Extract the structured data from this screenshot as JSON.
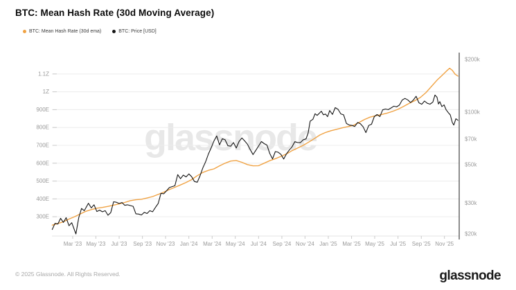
{
  "header": {
    "title": "BTC: Mean Hash Rate (30d Moving Average)",
    "legend": [
      {
        "label": "BTC: Mean Hash Rate (30d ema)",
        "color": "#f0a243"
      },
      {
        "label": "BTC: Price [USD]",
        "color": "#141414"
      }
    ]
  },
  "watermark": "glassnode",
  "footer": {
    "copyright": "© 2025 Glassnode. All Rights Reserved.",
    "logo": "glassnode"
  },
  "colors": {
    "hash_rate_line": "#f0a243",
    "price_line": "#141414",
    "gridline": "#ececec",
    "axis_line": "#1a1a1a",
    "tick_text": "#999999"
  },
  "chart_data": {
    "type": "line",
    "title": "BTC: Mean Hash Rate (30d Moving Average)",
    "x_unit": "decimal_year",
    "xlim": [
      2023.018,
      2025.934
    ],
    "grid": "horizontal",
    "legend_position": "top-left",
    "x_ticks": [
      {
        "t": 2023.167,
        "label": "Mar '23"
      },
      {
        "t": 2023.333,
        "label": "May '23"
      },
      {
        "t": 2023.5,
        "label": "Jul '23"
      },
      {
        "t": 2023.667,
        "label": "Sep '23"
      },
      {
        "t": 2023.833,
        "label": "Nov '23"
      },
      {
        "t": 2024.0,
        "label": "Jan '24"
      },
      {
        "t": 2024.167,
        "label": "Mar '24"
      },
      {
        "t": 2024.333,
        "label": "May '24"
      },
      {
        "t": 2024.5,
        "label": "Jul '24"
      },
      {
        "t": 2024.667,
        "label": "Sep '24"
      },
      {
        "t": 2024.833,
        "label": "Nov '24"
      },
      {
        "t": 2025.0,
        "label": "Jan '25"
      },
      {
        "t": 2025.167,
        "label": "Mar '25"
      },
      {
        "t": 2025.333,
        "label": "May '25"
      },
      {
        "t": 2025.5,
        "label": "Jul '25"
      },
      {
        "t": 2025.667,
        "label": "Sep '25"
      },
      {
        "t": 2025.833,
        "label": "Nov '25"
      }
    ],
    "left_axis": {
      "scale": "linear",
      "unit": "hash rate (H/s)",
      "ylim": [
        192,
        1204
      ],
      "ticks": [
        {
          "value": 1100,
          "label": "1.1Z"
        },
        {
          "value": 1000,
          "label": "1Z"
        },
        {
          "value": 900,
          "label": "900E"
        },
        {
          "value": 800,
          "label": "800E"
        },
        {
          "value": 700,
          "label": "700E"
        },
        {
          "value": 600,
          "label": "600E"
        },
        {
          "value": 500,
          "label": "500E"
        },
        {
          "value": 400,
          "label": "400E"
        },
        {
          "value": 300,
          "label": "300E"
        }
      ]
    },
    "right_axis": {
      "scale": "log",
      "unit": "USD (thousands)",
      "ylim": [
        19.46,
        211.7
      ],
      "ticks": [
        {
          "value": 200,
          "label": "$200k"
        },
        {
          "value": 100,
          "label": "$100k"
        },
        {
          "value": 70,
          "label": "$70k"
        },
        {
          "value": 50,
          "label": "$50k"
        },
        {
          "value": 30,
          "label": "$30k"
        },
        {
          "value": 20,
          "label": "$20k"
        }
      ]
    },
    "series": [
      {
        "name": "BTC: Mean Hash Rate (30d ema)",
        "axis": "left",
        "color": "#f0a243",
        "width": 1.4,
        "points": [
          [
            2023.02,
            253
          ],
          [
            2023.06,
            262
          ],
          [
            2023.1,
            272
          ],
          [
            2023.14,
            287
          ],
          [
            2023.18,
            300
          ],
          [
            2023.22,
            315
          ],
          [
            2023.26,
            330
          ],
          [
            2023.3,
            340
          ],
          [
            2023.34,
            348
          ],
          [
            2023.38,
            352
          ],
          [
            2023.42,
            358
          ],
          [
            2023.46,
            365
          ],
          [
            2023.5,
            372
          ],
          [
            2023.54,
            380
          ],
          [
            2023.58,
            390
          ],
          [
            2023.62,
            395
          ],
          [
            2023.66,
            398
          ],
          [
            2023.7,
            405
          ],
          [
            2023.74,
            413
          ],
          [
            2023.78,
            425
          ],
          [
            2023.82,
            438
          ],
          [
            2023.86,
            452
          ],
          [
            2023.9,
            465
          ],
          [
            2023.94,
            478
          ],
          [
            2023.98,
            492
          ],
          [
            2024.02,
            508
          ],
          [
            2024.06,
            530
          ],
          [
            2024.1,
            548
          ],
          [
            2024.14,
            560
          ],
          [
            2024.18,
            568
          ],
          [
            2024.22,
            585
          ],
          [
            2024.26,
            600
          ],
          [
            2024.3,
            612
          ],
          [
            2024.34,
            615
          ],
          [
            2024.38,
            605
          ],
          [
            2024.42,
            592
          ],
          [
            2024.46,
            585
          ],
          [
            2024.5,
            586
          ],
          [
            2024.54,
            600
          ],
          [
            2024.58,
            614
          ],
          [
            2024.62,
            625
          ],
          [
            2024.66,
            638
          ],
          [
            2024.7,
            652
          ],
          [
            2024.74,
            670
          ],
          [
            2024.78,
            685
          ],
          [
            2024.82,
            700
          ],
          [
            2024.86,
            718
          ],
          [
            2024.9,
            738
          ],
          [
            2024.94,
            758
          ],
          [
            2024.98,
            772
          ],
          [
            2025.02,
            782
          ],
          [
            2025.06,
            790
          ],
          [
            2025.1,
            798
          ],
          [
            2025.14,
            805
          ],
          [
            2025.18,
            812
          ],
          [
            2025.22,
            828
          ],
          [
            2025.26,
            845
          ],
          [
            2025.3,
            858
          ],
          [
            2025.34,
            866
          ],
          [
            2025.38,
            872
          ],
          [
            2025.42,
            880
          ],
          [
            2025.46,
            890
          ],
          [
            2025.5,
            902
          ],
          [
            2025.54,
            918
          ],
          [
            2025.58,
            935
          ],
          [
            2025.62,
            950
          ],
          [
            2025.66,
            968
          ],
          [
            2025.7,
            995
          ],
          [
            2025.74,
            1030
          ],
          [
            2025.78,
            1065
          ],
          [
            2025.82,
            1095
          ],
          [
            2025.85,
            1118
          ],
          [
            2025.87,
            1132
          ],
          [
            2025.89,
            1120
          ],
          [
            2025.91,
            1098
          ],
          [
            2025.93,
            1088
          ]
        ]
      },
      {
        "name": "BTC: Price [USD]",
        "axis": "right",
        "color": "#141414",
        "width": 1.1,
        "points": [
          [
            2023.02,
            21.2
          ],
          [
            2023.04,
            23.0
          ],
          [
            2023.06,
            22.8
          ],
          [
            2023.08,
            24.6
          ],
          [
            2023.1,
            23.3
          ],
          [
            2023.12,
            24.8
          ],
          [
            2023.14,
            22.3
          ],
          [
            2023.16,
            23.2
          ],
          [
            2023.19,
            20.0
          ],
          [
            2023.21,
            24.8
          ],
          [
            2023.23,
            28.0
          ],
          [
            2023.25,
            27.2
          ],
          [
            2023.28,
            30.0
          ],
          [
            2023.3,
            28.2
          ],
          [
            2023.32,
            29.4
          ],
          [
            2023.34,
            26.9
          ],
          [
            2023.36,
            27.4
          ],
          [
            2023.38,
            26.8
          ],
          [
            2023.4,
            27.2
          ],
          [
            2023.42,
            25.6
          ],
          [
            2023.44,
            26.5
          ],
          [
            2023.46,
            30.6
          ],
          [
            2023.48,
            30.4
          ],
          [
            2023.5,
            29.9
          ],
          [
            2023.52,
            30.3
          ],
          [
            2023.54,
            29.2
          ],
          [
            2023.56,
            29.4
          ],
          [
            2023.58,
            29.1
          ],
          [
            2023.6,
            28.8
          ],
          [
            2023.62,
            26.1
          ],
          [
            2023.64,
            26.0
          ],
          [
            2023.66,
            25.7
          ],
          [
            2023.68,
            26.6
          ],
          [
            2023.7,
            26.2
          ],
          [
            2023.72,
            27.2
          ],
          [
            2023.74,
            26.8
          ],
          [
            2023.76,
            28.4
          ],
          [
            2023.78,
            29.9
          ],
          [
            2023.8,
            34.2
          ],
          [
            2023.82,
            34.0
          ],
          [
            2023.84,
            35.4
          ],
          [
            2023.86,
            36.9
          ],
          [
            2023.88,
            37.4
          ],
          [
            2023.9,
            37.8
          ],
          [
            2023.92,
            43.8
          ],
          [
            2023.94,
            41.5
          ],
          [
            2023.96,
            43.5
          ],
          [
            2023.98,
            42.5
          ],
          [
            2024.0,
            44.2
          ],
          [
            2024.02,
            42.6
          ],
          [
            2024.04,
            40.0
          ],
          [
            2024.06,
            39.6
          ],
          [
            2024.08,
            43.1
          ],
          [
            2024.1,
            47.8
          ],
          [
            2024.12,
            51.8
          ],
          [
            2024.14,
            57.5
          ],
          [
            2024.16,
            62.4
          ],
          [
            2024.18,
            68.3
          ],
          [
            2024.2,
            73.0
          ],
          [
            2024.22,
            64.9
          ],
          [
            2024.24,
            70.4
          ],
          [
            2024.26,
            69.4
          ],
          [
            2024.28,
            64.2
          ],
          [
            2024.3,
            63.8
          ],
          [
            2024.32,
            66.9
          ],
          [
            2024.34,
            62.2
          ],
          [
            2024.36,
            67.8
          ],
          [
            2024.38,
            71.1
          ],
          [
            2024.4,
            68.4
          ],
          [
            2024.42,
            65.5
          ],
          [
            2024.44,
            60.9
          ],
          [
            2024.46,
            57.1
          ],
          [
            2024.48,
            60.3
          ],
          [
            2024.5,
            63.9
          ],
          [
            2024.52,
            67.8
          ],
          [
            2024.54,
            66.0
          ],
          [
            2024.56,
            64.7
          ],
          [
            2024.58,
            58.0
          ],
          [
            2024.6,
            53.9
          ],
          [
            2024.62,
            59.4
          ],
          [
            2024.64,
            58.9
          ],
          [
            2024.66,
            57.3
          ],
          [
            2024.68,
            53.8
          ],
          [
            2024.7,
            57.6
          ],
          [
            2024.72,
            60.6
          ],
          [
            2024.74,
            63.2
          ],
          [
            2024.76,
            67.7
          ],
          [
            2024.78,
            66.9
          ],
          [
            2024.8,
            66.8
          ],
          [
            2024.82,
            69.4
          ],
          [
            2024.84,
            70.2
          ],
          [
            2024.855,
            75.6
          ],
          [
            2024.87,
            88.7
          ],
          [
            2024.89,
            91.0
          ],
          [
            2024.905,
            97.9
          ],
          [
            2024.92,
            95.8
          ],
          [
            2024.935,
            98.4
          ],
          [
            2024.95,
            101.2
          ],
          [
            2024.965,
            96.6
          ],
          [
            2024.98,
            97.5
          ],
          [
            2024.995,
            94.2
          ],
          [
            2025.01,
            102.1
          ],
          [
            2025.03,
            97.0
          ],
          [
            2025.05,
            106.1
          ],
          [
            2025.07,
            103.7
          ],
          [
            2025.09,
            97.7
          ],
          [
            2025.11,
            96.5
          ],
          [
            2025.13,
            86.1
          ],
          [
            2025.15,
            84.3
          ],
          [
            2025.17,
            83.9
          ],
          [
            2025.19,
            82.8
          ],
          [
            2025.21,
            87.2
          ],
          [
            2025.23,
            85.8
          ],
          [
            2025.25,
            82.4
          ],
          [
            2025.27,
            76.3
          ],
          [
            2025.29,
            83.9
          ],
          [
            2025.31,
            85.2
          ],
          [
            2025.33,
            94.2
          ],
          [
            2025.35,
            96.9
          ],
          [
            2025.37,
            94.3
          ],
          [
            2025.39,
            103.1
          ],
          [
            2025.41,
            104.2
          ],
          [
            2025.43,
            103.4
          ],
          [
            2025.45,
            105.7
          ],
          [
            2025.47,
            108.2
          ],
          [
            2025.49,
            107.2
          ],
          [
            2025.51,
            109.7
          ],
          [
            2025.53,
            117.4
          ],
          [
            2025.55,
            119.9
          ],
          [
            2025.57,
            117.6
          ],
          [
            2025.59,
            113.6
          ],
          [
            2025.61,
            117.4
          ],
          [
            2025.63,
            123.3
          ],
          [
            2025.65,
            113.2
          ],
          [
            2025.67,
            111.0
          ],
          [
            2025.69,
            115.8
          ],
          [
            2025.71,
            112.4
          ],
          [
            2025.73,
            111.1
          ],
          [
            2025.75,
            114.3
          ],
          [
            2025.765,
            125.4
          ],
          [
            2025.78,
            121.6
          ],
          [
            2025.79,
            111.3
          ],
          [
            2025.8,
            114.9
          ],
          [
            2025.815,
            107.6
          ],
          [
            2025.83,
            110.1
          ],
          [
            2025.845,
            103.2
          ],
          [
            2025.86,
            99.5
          ],
          [
            2025.875,
            96.4
          ],
          [
            2025.89,
            87.1
          ],
          [
            2025.9,
            84.3
          ],
          [
            2025.915,
            91.6
          ],
          [
            2025.93,
            89.8
          ]
        ]
      }
    ]
  }
}
